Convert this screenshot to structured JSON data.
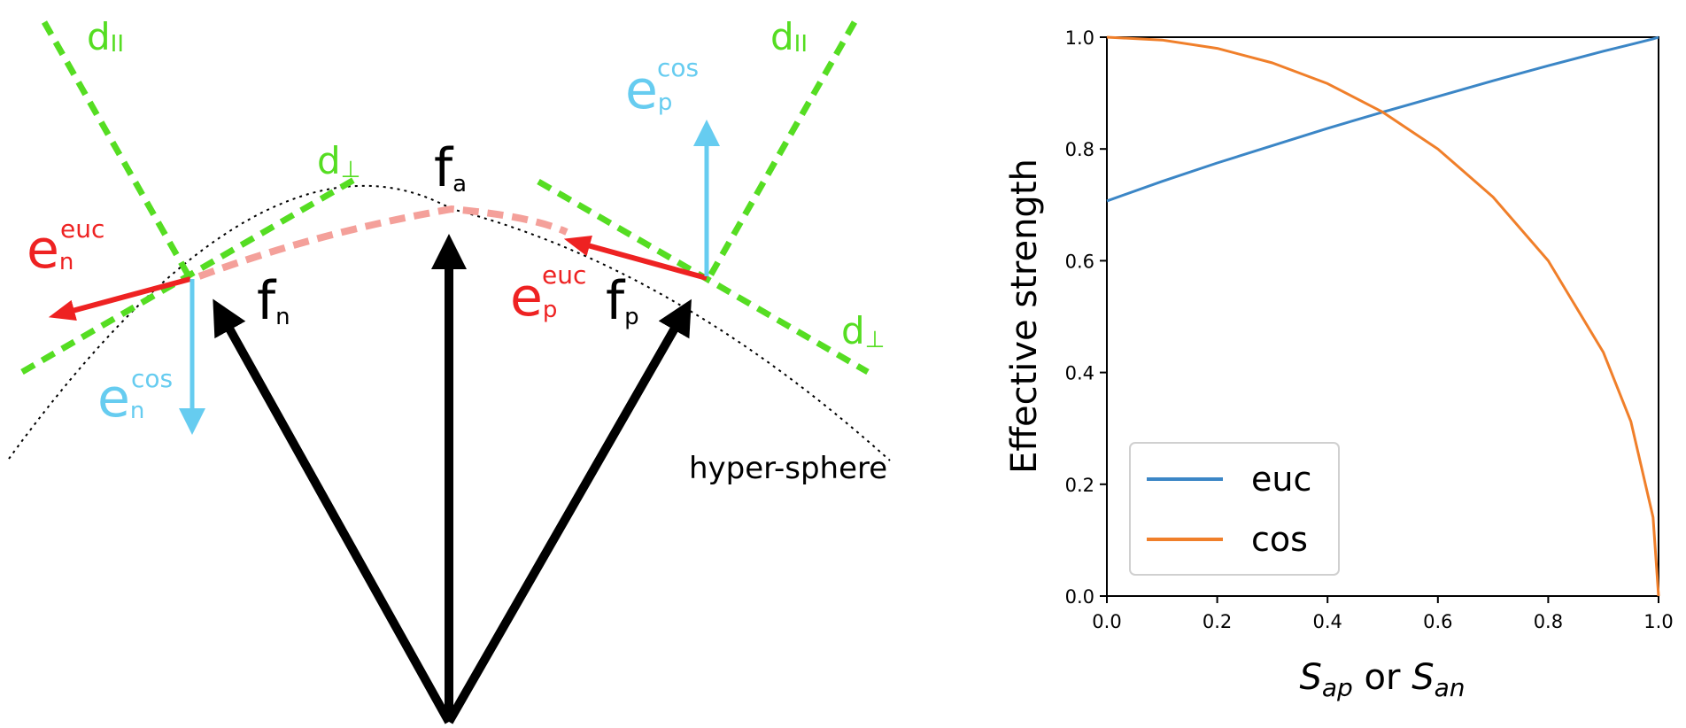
{
  "colors": {
    "green": "#55dd22",
    "red": "#ee2222",
    "light_red": "#f4a09a",
    "cyan": "#66ccf0",
    "black": "#000000",
    "euc": "#3b86c6",
    "cos": "#f07f2a"
  },
  "diagram": {
    "labels": {
      "d_par_left": {
        "base": "d",
        "sub": "II"
      },
      "d_par_right": {
        "base": "d",
        "sub": "II"
      },
      "d_perp_left": {
        "base": "d",
        "sub": "⊥"
      },
      "d_perp_right": {
        "base": "d",
        "sub": "⊥"
      },
      "fa": {
        "base": "f",
        "sub": "a"
      },
      "fn": {
        "base": "f",
        "sub": "n"
      },
      "fp": {
        "base": "f",
        "sub": "p"
      },
      "en_euc": {
        "base": "e",
        "sub": "n",
        "sup": "euc"
      },
      "ep_euc": {
        "base": "e",
        "sub": "p",
        "sup": "euc"
      },
      "en_cos": {
        "base": "e",
        "sub": "n",
        "sup": "cos"
      },
      "ep_cos": {
        "base": "e",
        "sub": "p",
        "sup": "cos"
      },
      "hypersphere": "hyper-sphere"
    }
  },
  "chart_data": {
    "type": "line",
    "xlabel": {
      "s1": "S",
      "sub1": "ap",
      "mid": " or ",
      "s2": "S",
      "sub2": "an"
    },
    "ylabel": "Effective strength",
    "xlim": [
      0.0,
      1.0
    ],
    "ylim": [
      0.0,
      1.0
    ],
    "xticks": [
      "0.0",
      "0.2",
      "0.4",
      "0.6",
      "0.8",
      "1.0"
    ],
    "yticks": [
      "0.0",
      "0.2",
      "0.4",
      "0.6",
      "0.8",
      "1.0"
    ],
    "grid": false,
    "legend": "lower-left",
    "x": [
      0.0,
      0.1,
      0.2,
      0.3,
      0.4,
      0.5,
      0.6,
      0.7,
      0.8,
      0.9,
      0.95,
      0.99,
      1.0
    ],
    "series": [
      {
        "name": "euc",
        "color": "#3b86c6",
        "values": [
          0.707,
          0.742,
          0.775,
          0.806,
          0.837,
          0.866,
          0.894,
          0.922,
          0.949,
          0.975,
          0.987,
          0.997,
          1.0
        ]
      },
      {
        "name": "cos",
        "color": "#f07f2a",
        "values": [
          1.0,
          0.995,
          0.98,
          0.954,
          0.917,
          0.866,
          0.8,
          0.714,
          0.6,
          0.436,
          0.312,
          0.141,
          0.0
        ]
      }
    ]
  }
}
